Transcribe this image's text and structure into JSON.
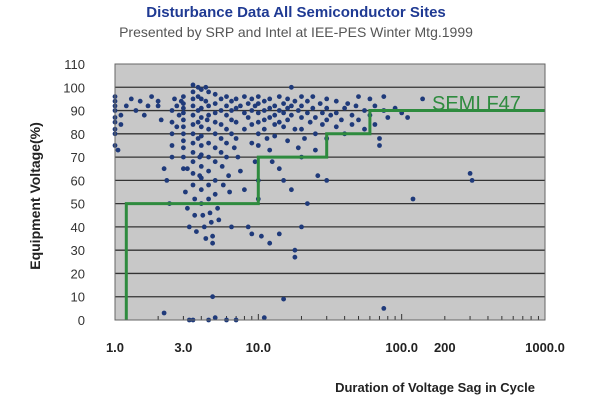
{
  "chart_data": {
    "type": "scatter",
    "title": "Disturbance Data All Semiconductor Sites",
    "subtitle": "Presented by SRP and Intel at IEE-PES Winter Mtg.1999",
    "xlabel": "Duration of Voltage Sag in Cycle",
    "ylabel": "Equipment Voltage(%)",
    "x_scale": "log",
    "xlim": [
      1,
      1000
    ],
    "ylim": [
      0,
      110
    ],
    "x_tick_labels": [
      "1.0",
      "3.0",
      "10.0",
      "100.0",
      "200",
      "1000.0"
    ],
    "x_tick_values": [
      1,
      3,
      10,
      100,
      200,
      1000
    ],
    "y_tick_labels": [
      "0",
      "10",
      "20",
      "30",
      "40",
      "50",
      "60",
      "70",
      "80",
      "90",
      "100",
      "110"
    ],
    "y_tick_values": [
      0,
      10,
      20,
      30,
      40,
      50,
      60,
      70,
      80,
      90,
      100,
      110
    ],
    "grid": "horizontal",
    "colors": {
      "points": "#1f3a7a",
      "curve": "#2e8b3e",
      "plot_bg": "#c8c8c8"
    },
    "curve": {
      "name": "SEMI F47",
      "points": [
        [
          1.2,
          0
        ],
        [
          1.2,
          50
        ],
        [
          10,
          50
        ],
        [
          10,
          70
        ],
        [
          30,
          70
        ],
        [
          30,
          80
        ],
        [
          60,
          80
        ],
        [
          60,
          90
        ],
        [
          1000,
          90
        ]
      ]
    },
    "series": [
      {
        "values": [
          [
            1.0,
            96
          ],
          [
            1.0,
            94
          ],
          [
            1.0,
            92
          ],
          [
            1.0,
            90
          ],
          [
            1.0,
            87
          ],
          [
            1.0,
            85
          ],
          [
            1.0,
            82
          ],
          [
            1.0,
            80
          ],
          [
            1.0,
            75
          ],
          [
            1.05,
            73
          ],
          [
            1.3,
            95
          ],
          [
            1.5,
            94
          ],
          [
            1.8,
            96
          ],
          [
            2.0,
            94
          ],
          [
            2.0,
            92
          ],
          [
            2.2,
            65
          ],
          [
            2.3,
            60
          ],
          [
            2.5,
            70
          ],
          [
            2.5,
            75
          ],
          [
            2.5,
            80
          ],
          [
            2.5,
            85
          ],
          [
            2.5,
            90
          ],
          [
            2.6,
            95
          ],
          [
            2.7,
            92
          ],
          [
            2.8,
            88
          ],
          [
            2.9,
            94
          ],
          [
            3.0,
            96
          ],
          [
            3.0,
            93
          ],
          [
            3.0,
            91
          ],
          [
            3.0,
            89
          ],
          [
            3.0,
            86
          ],
          [
            3.0,
            83
          ],
          [
            3.0,
            80
          ],
          [
            3.0,
            77
          ],
          [
            3.0,
            74
          ],
          [
            3.0,
            70
          ],
          [
            3.0,
            65
          ],
          [
            3.1,
            55
          ],
          [
            3.2,
            48
          ],
          [
            3.3,
            40
          ],
          [
            3.5,
            101
          ],
          [
            3.5,
            98
          ],
          [
            3.5,
            95
          ],
          [
            3.5,
            92
          ],
          [
            3.5,
            88
          ],
          [
            3.5,
            84
          ],
          [
            3.5,
            80
          ],
          [
            3.5,
            76
          ],
          [
            3.5,
            72
          ],
          [
            3.5,
            68
          ],
          [
            3.5,
            63
          ],
          [
            3.5,
            58
          ],
          [
            3.6,
            52
          ],
          [
            3.6,
            45
          ],
          [
            3.7,
            38
          ],
          [
            3.8,
            100
          ],
          [
            3.8,
            96
          ],
          [
            3.8,
            90
          ],
          [
            3.8,
            85
          ],
          [
            3.8,
            78
          ],
          [
            3.9,
            70
          ],
          [
            3.9,
            62
          ],
          [
            4.0,
            99
          ],
          [
            4.0,
            95
          ],
          [
            4.0,
            91
          ],
          [
            4.0,
            87
          ],
          [
            4.0,
            83
          ],
          [
            4.0,
            79
          ],
          [
            4.0,
            75
          ],
          [
            4.0,
            71
          ],
          [
            4.0,
            66
          ],
          [
            4.0,
            61
          ],
          [
            4.0,
            56
          ],
          [
            4.0,
            50
          ],
          [
            4.1,
            45
          ],
          [
            4.2,
            40
          ],
          [
            4.3,
            35
          ],
          [
            4.3,
            100
          ],
          [
            4.3,
            94
          ],
          [
            4.4,
            86
          ],
          [
            4.5,
            98
          ],
          [
            4.5,
            92
          ],
          [
            4.5,
            88
          ],
          [
            4.5,
            82
          ],
          [
            4.5,
            76
          ],
          [
            4.5,
            70
          ],
          [
            4.5,
            64
          ],
          [
            4.5,
            58
          ],
          [
            4.5,
            52
          ],
          [
            4.6,
            46
          ],
          [
            4.7,
            42
          ],
          [
            4.8,
            36
          ],
          [
            4.8,
            33
          ],
          [
            5.0,
            97
          ],
          [
            5.0,
            93
          ],
          [
            5.0,
            89
          ],
          [
            5.0,
            85
          ],
          [
            5.0,
            80
          ],
          [
            5.0,
            74
          ],
          [
            5.0,
            68
          ],
          [
            5.0,
            60
          ],
          [
            5.0,
            54
          ],
          [
            5.2,
            48
          ],
          [
            5.3,
            43
          ],
          [
            5.5,
            95
          ],
          [
            5.5,
            90
          ],
          [
            5.5,
            84
          ],
          [
            5.5,
            78
          ],
          [
            5.5,
            72
          ],
          [
            5.6,
            66
          ],
          [
            5.7,
            58
          ],
          [
            6.0,
            96
          ],
          [
            6.0,
            92
          ],
          [
            6.0,
            88
          ],
          [
            6.0,
            82
          ],
          [
            6.0,
            76
          ],
          [
            6.0,
            70
          ],
          [
            6.2,
            62
          ],
          [
            6.3,
            55
          ],
          [
            6.5,
            94
          ],
          [
            6.5,
            90
          ],
          [
            6.5,
            86
          ],
          [
            6.5,
            80
          ],
          [
            6.8,
            74
          ],
          [
            7.0,
            95
          ],
          [
            7.0,
            91
          ],
          [
            7.0,
            85
          ],
          [
            7.0,
            78
          ],
          [
            7.2,
            70
          ],
          [
            7.5,
            64
          ],
          [
            7.5,
            92
          ],
          [
            8.0,
            96
          ],
          [
            8.0,
            89
          ],
          [
            8.0,
            82
          ],
          [
            8.0,
            56
          ],
          [
            8.5,
            93
          ],
          [
            8.5,
            87
          ],
          [
            8.5,
            40
          ],
          [
            9.0,
            95
          ],
          [
            9.0,
            90
          ],
          [
            9.0,
            84
          ],
          [
            9.0,
            76
          ],
          [
            9.5,
            92
          ],
          [
            9.5,
            68
          ],
          [
            10.0,
            96
          ],
          [
            10.0,
            93
          ],
          [
            10.0,
            89
          ],
          [
            10.0,
            85
          ],
          [
            10.0,
            80
          ],
          [
            10.0,
            75
          ],
          [
            10.0,
            60
          ],
          [
            10.0,
            52
          ],
          [
            10.5,
            36
          ],
          [
            11.0,
            94
          ],
          [
            11.0,
            90
          ],
          [
            11.0,
            86
          ],
          [
            11.0,
            82
          ],
          [
            11.5,
            78
          ],
          [
            12.0,
            95
          ],
          [
            12.0,
            91
          ],
          [
            12.0,
            87
          ],
          [
            12.0,
            73
          ],
          [
            12.0,
            33
          ],
          [
            12.5,
            68
          ],
          [
            13.0,
            92
          ],
          [
            13.0,
            88
          ],
          [
            13.0,
            84
          ],
          [
            13.0,
            79
          ],
          [
            14.0,
            96
          ],
          [
            14.0,
            90
          ],
          [
            14.0,
            85
          ],
          [
            14.0,
            65
          ],
          [
            14.0,
            37
          ],
          [
            15.0,
            93
          ],
          [
            15.0,
            89
          ],
          [
            15.0,
            83
          ],
          [
            15.0,
            60
          ],
          [
            16.0,
            95
          ],
          [
            16.0,
            91
          ],
          [
            16.0,
            86
          ],
          [
            16.0,
            77
          ],
          [
            17.0,
            100
          ],
          [
            17.0,
            92
          ],
          [
            17.0,
            88
          ],
          [
            17.0,
            56
          ],
          [
            18.0,
            94
          ],
          [
            18.0,
            82
          ],
          [
            18.0,
            27
          ],
          [
            19.0,
            90
          ],
          [
            19.0,
            74
          ],
          [
            20.0,
            96
          ],
          [
            20.0,
            92
          ],
          [
            20.0,
            87
          ],
          [
            20.0,
            82
          ],
          [
            20.0,
            70
          ],
          [
            21.0,
            78
          ],
          [
            22.0,
            94
          ],
          [
            22.0,
            89
          ],
          [
            22.0,
            50
          ],
          [
            23.0,
            85
          ],
          [
            24.0,
            96
          ],
          [
            24.0,
            91
          ],
          [
            25.0,
            87
          ],
          [
            25.0,
            80
          ],
          [
            25.0,
            73
          ],
          [
            26.0,
            62
          ],
          [
            27.0,
            93
          ],
          [
            28.0,
            89
          ],
          [
            28.0,
            84
          ],
          [
            30.0,
            95
          ],
          [
            30.0,
            91
          ],
          [
            30.0,
            86
          ],
          [
            30.0,
            78
          ],
          [
            30.0,
            60
          ],
          [
            32.0,
            88
          ],
          [
            35.0,
            94
          ],
          [
            35.0,
            89
          ],
          [
            35.0,
            83
          ],
          [
            38.0,
            86
          ],
          [
            40.0,
            91
          ],
          [
            40.0,
            80
          ],
          [
            42.0,
            93
          ],
          [
            45.0,
            88
          ],
          [
            45.0,
            84
          ],
          [
            48.0,
            92
          ],
          [
            50.0,
            96
          ],
          [
            50.0,
            86
          ],
          [
            55.0,
            90
          ],
          [
            55.0,
            82
          ],
          [
            60.0,
            95
          ],
          [
            60.0,
            88
          ],
          [
            65.0,
            84
          ],
          [
            65.0,
            92
          ],
          [
            70.0,
            78
          ],
          [
            70.0,
            75
          ],
          [
            75.0,
            96
          ],
          [
            75.0,
            90
          ],
          [
            80.0,
            87
          ],
          [
            90.0,
            91
          ],
          [
            100.0,
            89
          ],
          [
            110.0,
            87
          ],
          [
            120.0,
            52
          ],
          [
            140.0,
            95
          ],
          [
            300.0,
            63
          ],
          [
            310.0,
            60
          ],
          [
            2.2,
            3
          ],
          [
            3.5,
            0
          ],
          [
            4.5,
            0
          ],
          [
            4.8,
            10
          ],
          [
            5.0,
            1
          ],
          [
            6.0,
            0
          ],
          [
            7.0,
            0
          ],
          [
            15.0,
            9
          ],
          [
            75.0,
            5
          ],
          [
            20.0,
            40
          ],
          [
            18.0,
            30
          ],
          [
            9.0,
            37
          ],
          [
            6.5,
            40
          ],
          [
            3.3,
            0
          ],
          [
            11.0,
            1
          ],
          [
            1.1,
            88
          ],
          [
            1.1,
            84
          ],
          [
            1.2,
            92
          ],
          [
            1.4,
            90
          ],
          [
            1.6,
            88
          ],
          [
            1.7,
            92
          ],
          [
            2.1,
            86
          ],
          [
            2.4,
            50
          ],
          [
            2.7,
            83
          ],
          [
            3.2,
            65
          ]
        ]
      }
    ]
  }
}
